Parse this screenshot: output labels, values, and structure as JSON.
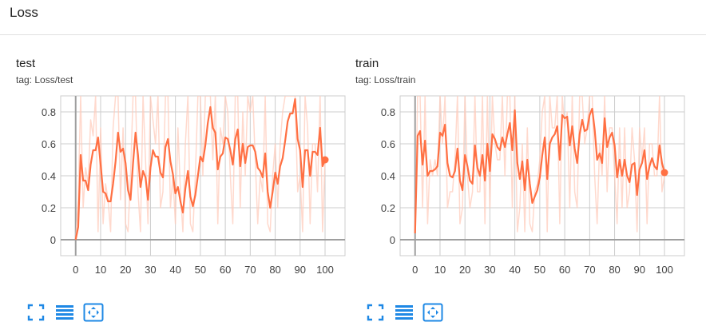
{
  "section": {
    "title": "Loss"
  },
  "colors": {
    "accent": "#ff7043",
    "raw_line": "#ffccbc",
    "grid": "#cccccc",
    "axis": "#9e9e9e",
    "icon": "#1e88e5"
  },
  "icons": [
    "fit-domain-icon",
    "toggle-log-scale-icon",
    "expand-chart-icon"
  ],
  "cards": [
    {
      "title": "test",
      "tag": "tag: Loss/test"
    },
    {
      "title": "train",
      "tag": "tag: Loss/train"
    }
  ],
  "chart_data": [
    {
      "type": "line",
      "title": "test",
      "subtitle": "tag: Loss/test",
      "xlabel": "",
      "ylabel": "",
      "xlim": [
        -6,
        108
      ],
      "ylim": [
        -0.1,
        0.9
      ],
      "xticks": [
        0,
        10,
        20,
        30,
        40,
        50,
        60,
        70,
        80,
        90,
        100
      ],
      "yticks": [
        0,
        0.2,
        0.4,
        0.6,
        0.8
      ],
      "xtick_labels": [
        "0",
        "10",
        "20",
        "30",
        "40",
        "50",
        "60",
        "70",
        "80",
        "90",
        "100"
      ],
      "ytick_labels": [
        "0",
        "0.2",
        "0.4",
        "0.6",
        "0.8"
      ],
      "grid": true,
      "series": [
        {
          "role": "smoothed",
          "x": [
            0,
            1,
            2,
            3,
            4,
            5,
            6,
            7,
            8,
            9,
            10,
            11,
            12,
            13,
            14,
            15,
            16,
            17,
            18,
            19,
            20,
            21,
            22,
            23,
            24,
            25,
            26,
            27,
            28,
            29,
            30,
            31,
            32,
            33,
            34,
            35,
            36,
            37,
            38,
            39,
            40,
            41,
            42,
            43,
            44,
            45,
            46,
            47,
            48,
            49,
            50,
            51,
            52,
            53,
            54,
            55,
            56,
            57,
            58,
            59,
            60,
            61,
            62,
            63,
            64,
            65,
            66,
            67,
            68,
            69,
            70,
            71,
            72,
            73,
            74,
            75,
            76,
            77,
            78,
            79,
            80,
            81,
            82,
            83,
            84,
            85,
            86,
            87,
            88,
            89,
            90,
            91,
            92,
            93,
            94,
            95,
            96,
            97,
            98,
            99,
            100
          ],
          "values": [
            0.0,
            0.08,
            0.53,
            0.37,
            0.37,
            0.31,
            0.47,
            0.56,
            0.56,
            0.64,
            0.47,
            0.3,
            0.29,
            0.24,
            0.24,
            0.35,
            0.49,
            0.67,
            0.55,
            0.57,
            0.48,
            0.31,
            0.25,
            0.48,
            0.67,
            0.53,
            0.33,
            0.43,
            0.39,
            0.25,
            0.45,
            0.56,
            0.52,
            0.52,
            0.42,
            0.39,
            0.58,
            0.63,
            0.49,
            0.41,
            0.29,
            0.33,
            0.24,
            0.17,
            0.32,
            0.43,
            0.27,
            0.21,
            0.28,
            0.4,
            0.52,
            0.49,
            0.59,
            0.73,
            0.83,
            0.7,
            0.67,
            0.44,
            0.52,
            0.54,
            0.64,
            0.63,
            0.56,
            0.47,
            0.63,
            0.69,
            0.46,
            0.6,
            0.48,
            0.58,
            0.59,
            0.59,
            0.55,
            0.45,
            0.43,
            0.39,
            0.54,
            0.3,
            0.2,
            0.3,
            0.42,
            0.35,
            0.46,
            0.51,
            0.62,
            0.74,
            0.79,
            0.79,
            0.88,
            0.63,
            0.56,
            0.33,
            0.56,
            0.56,
            0.4,
            0.55,
            0.55,
            0.53,
            0.7,
            0.46,
            0.5
          ]
        },
        {
          "role": "raw",
          "x": [
            0,
            1,
            2,
            3,
            4,
            5,
            6,
            7,
            8,
            9,
            10,
            11,
            12,
            13,
            14,
            15,
            16,
            17,
            18,
            19,
            20,
            21,
            22,
            23,
            24,
            25,
            26,
            27,
            28,
            29,
            30,
            31,
            32,
            33,
            34,
            35,
            36,
            37,
            38,
            39,
            40,
            41,
            42,
            43,
            44,
            45,
            46,
            47,
            48,
            49,
            50,
            51,
            52,
            53,
            54,
            55,
            56,
            57,
            58,
            59,
            60,
            61,
            62,
            63,
            64,
            65,
            66,
            67,
            68,
            69,
            70,
            71,
            72,
            73,
            74,
            75,
            76,
            77,
            78,
            79,
            80,
            81,
            82,
            83,
            84,
            85,
            86,
            87,
            88,
            89,
            90,
            91,
            92,
            93,
            94,
            95,
            96,
            97,
            98,
            99,
            100
          ],
          "values": [
            0.0,
            0.25,
            0.9,
            0.2,
            0.45,
            0.35,
            0.75,
            0.65,
            0.9,
            0.05,
            0.7,
            0.1,
            0.35,
            0.25,
            0.05,
            0.7,
            0.9,
            0.9,
            0.25,
            0.7,
            0.1,
            0.05,
            0.4,
            0.9,
            0.9,
            0.3,
            0.05,
            0.9,
            0.5,
            0.1,
            0.9,
            0.75,
            0.6,
            0.9,
            0.2,
            0.3,
            0.9,
            0.9,
            0.2,
            0.4,
            0.1,
            0.7,
            0.3,
            0.05,
            0.6,
            0.9,
            0.1,
            0.05,
            0.4,
            0.9,
            0.9,
            0.4,
            0.9,
            0.9,
            0.9,
            0.5,
            0.9,
            0.1,
            0.7,
            0.6,
            0.9,
            0.8,
            0.4,
            0.1,
            0.9,
            0.9,
            0.2,
            0.8,
            0.4,
            0.9,
            0.8,
            0.9,
            0.5,
            0.1,
            0.4,
            0.3,
            0.9,
            0.1,
            0.05,
            0.4,
            0.6,
            0.2,
            0.6,
            0.8,
            0.9,
            0.9,
            0.9,
            0.9,
            0.9,
            0.3,
            0.4,
            0.05,
            0.9,
            0.7,
            0.1,
            0.6,
            0.6,
            0.3,
            0.9,
            0.05,
            0.5
          ]
        }
      ]
    },
    {
      "type": "line",
      "title": "train",
      "subtitle": "tag: Loss/train",
      "xlabel": "",
      "ylabel": "",
      "xlim": [
        -6,
        108
      ],
      "ylim": [
        -0.1,
        0.9
      ],
      "xticks": [
        0,
        10,
        20,
        30,
        40,
        50,
        60,
        70,
        80,
        90,
        100
      ],
      "yticks": [
        0,
        0.2,
        0.4,
        0.6,
        0.8
      ],
      "xtick_labels": [
        "0",
        "10",
        "20",
        "30",
        "40",
        "50",
        "60",
        "70",
        "80",
        "90",
        "100"
      ],
      "ytick_labels": [
        "0",
        "0.2",
        "0.4",
        "0.6",
        "0.8"
      ],
      "grid": true,
      "series": [
        {
          "role": "smoothed",
          "x": [
            0,
            1,
            2,
            3,
            4,
            5,
            6,
            7,
            8,
            9,
            10,
            11,
            12,
            13,
            14,
            15,
            16,
            17,
            18,
            19,
            20,
            21,
            22,
            23,
            24,
            25,
            26,
            27,
            28,
            29,
            30,
            31,
            32,
            33,
            34,
            35,
            36,
            37,
            38,
            39,
            40,
            41,
            42,
            43,
            44,
            45,
            46,
            47,
            48,
            49,
            50,
            51,
            52,
            53,
            54,
            55,
            56,
            57,
            58,
            59,
            60,
            61,
            62,
            63,
            64,
            65,
            66,
            67,
            68,
            69,
            70,
            71,
            72,
            73,
            74,
            75,
            76,
            77,
            78,
            79,
            80,
            81,
            82,
            83,
            84,
            85,
            86,
            87,
            88,
            89,
            90,
            91,
            92,
            93,
            94,
            95,
            96,
            97,
            98,
            99,
            100
          ],
          "values": [
            0.04,
            0.65,
            0.68,
            0.47,
            0.62,
            0.4,
            0.43,
            0.43,
            0.44,
            0.46,
            0.67,
            0.65,
            0.72,
            0.48,
            0.4,
            0.39,
            0.43,
            0.57,
            0.37,
            0.31,
            0.53,
            0.46,
            0.37,
            0.35,
            0.59,
            0.45,
            0.4,
            0.53,
            0.37,
            0.6,
            0.43,
            0.66,
            0.63,
            0.58,
            0.56,
            0.64,
            0.58,
            0.66,
            0.73,
            0.56,
            0.81,
            0.48,
            0.38,
            0.49,
            0.31,
            0.5,
            0.35,
            0.23,
            0.27,
            0.31,
            0.39,
            0.53,
            0.64,
            0.38,
            0.6,
            0.64,
            0.66,
            0.71,
            0.5,
            0.78,
            0.76,
            0.77,
            0.59,
            0.71,
            0.57,
            0.48,
            0.66,
            0.75,
            0.68,
            0.69,
            0.78,
            0.82,
            0.69,
            0.5,
            0.54,
            0.48,
            0.76,
            0.58,
            0.64,
            0.67,
            0.59,
            0.39,
            0.5,
            0.4,
            0.5,
            0.4,
            0.36,
            0.47,
            0.48,
            0.28,
            0.44,
            0.48,
            0.56,
            0.38,
            0.46,
            0.51,
            0.46,
            0.44,
            0.59,
            0.48,
            0.42
          ]
        },
        {
          "role": "raw",
          "x": [
            0,
            1,
            2,
            3,
            4,
            5,
            6,
            7,
            8,
            9,
            10,
            11,
            12,
            13,
            14,
            15,
            16,
            17,
            18,
            19,
            20,
            21,
            22,
            23,
            24,
            25,
            26,
            27,
            28,
            29,
            30,
            31,
            32,
            33,
            34,
            35,
            36,
            37,
            38,
            39,
            40,
            41,
            42,
            43,
            44,
            45,
            46,
            47,
            48,
            49,
            50,
            51,
            52,
            53,
            54,
            55,
            56,
            57,
            58,
            59,
            60,
            61,
            62,
            63,
            64,
            65,
            66,
            67,
            68,
            69,
            70,
            71,
            72,
            73,
            74,
            75,
            76,
            77,
            78,
            79,
            80,
            81,
            82,
            83,
            84,
            85,
            86,
            87,
            88,
            89,
            90,
            91,
            92,
            93,
            94,
            95,
            96,
            97,
            98,
            99,
            100
          ],
          "values": [
            0.04,
            0.9,
            0.9,
            0.2,
            0.9,
            0.1,
            0.5,
            0.4,
            0.5,
            0.4,
            0.9,
            0.6,
            0.9,
            0.2,
            0.3,
            0.3,
            0.5,
            0.9,
            0.1,
            0.2,
            0.9,
            0.4,
            0.2,
            0.3,
            0.9,
            0.3,
            0.3,
            0.9,
            0.1,
            0.9,
            0.2,
            0.9,
            0.6,
            0.5,
            0.5,
            0.9,
            0.4,
            0.9,
            0.9,
            0.2,
            0.9,
            0.05,
            0.2,
            0.6,
            0.05,
            0.7,
            0.1,
            0.05,
            0.3,
            0.35,
            0.5,
            0.8,
            0.9,
            0.05,
            0.9,
            0.7,
            0.7,
            0.9,
            0.1,
            0.9,
            0.7,
            0.8,
            0.2,
            0.9,
            0.3,
            0.2,
            0.9,
            0.9,
            0.6,
            0.7,
            0.9,
            0.9,
            0.4,
            0.1,
            0.6,
            0.4,
            0.9,
            0.3,
            0.7,
            0.7,
            0.4,
            0.1,
            0.7,
            0.2,
            0.7,
            0.2,
            0.3,
            0.7,
            0.5,
            0.05,
            0.7,
            0.5,
            0.7,
            0.1,
            0.6,
            0.6,
            0.4,
            0.4,
            0.9,
            0.3,
            0.4
          ]
        }
      ]
    }
  ]
}
